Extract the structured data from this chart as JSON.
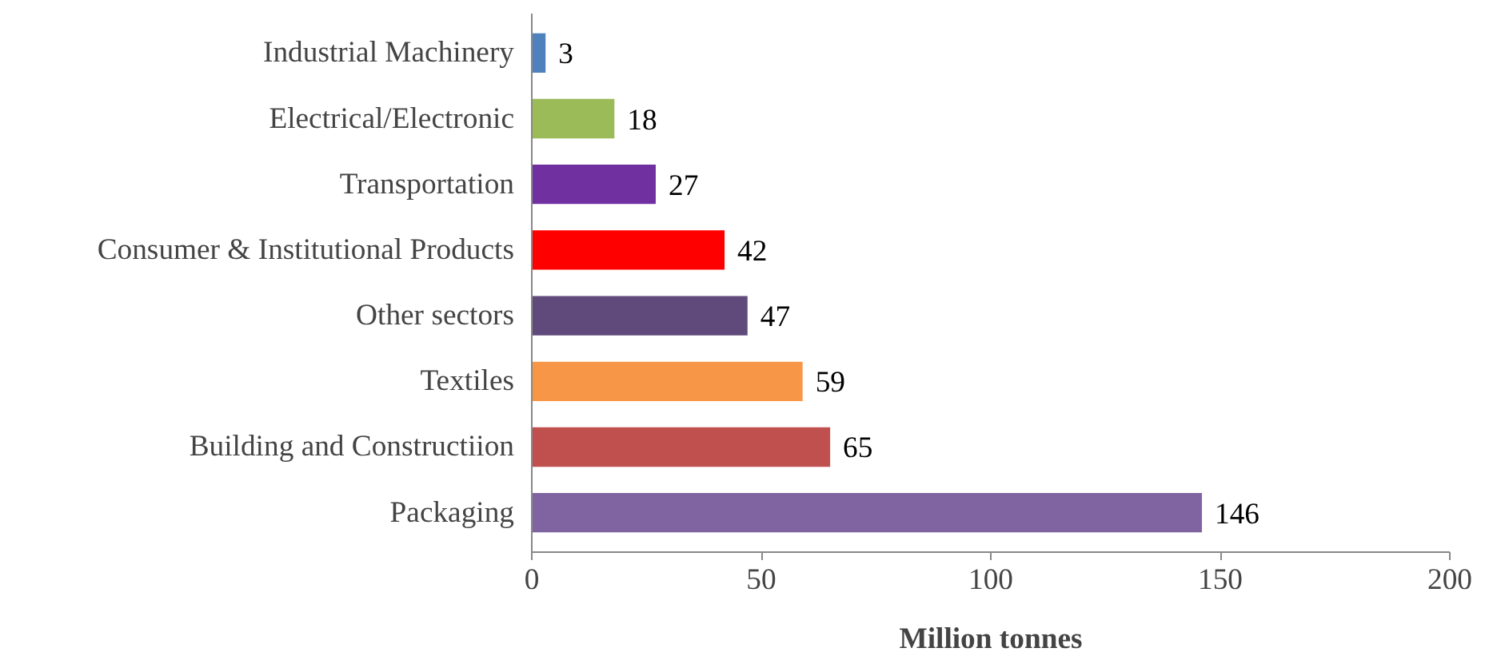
{
  "chart_data": {
    "type": "bar",
    "orientation": "horizontal",
    "xlabel": "Million tonnes",
    "categories": [
      "Industrial Machinery",
      "Electrical/Electronic",
      "Transportation",
      "Consumer & Institutional Products",
      "Other sectors",
      "Textiles",
      "Building and Constructiion",
      "Packaging"
    ],
    "values": [
      3,
      18,
      27,
      42,
      47,
      59,
      65,
      146
    ],
    "colors": [
      "#4f81bd",
      "#9bbb59",
      "#7030a0",
      "#ff0000",
      "#604a7b",
      "#f79646",
      "#c0504d",
      "#8064a2"
    ],
    "xlim": [
      0,
      200
    ],
    "xticks": [
      0,
      50,
      100,
      150,
      200
    ],
    "grid": false,
    "data_labels": true
  }
}
